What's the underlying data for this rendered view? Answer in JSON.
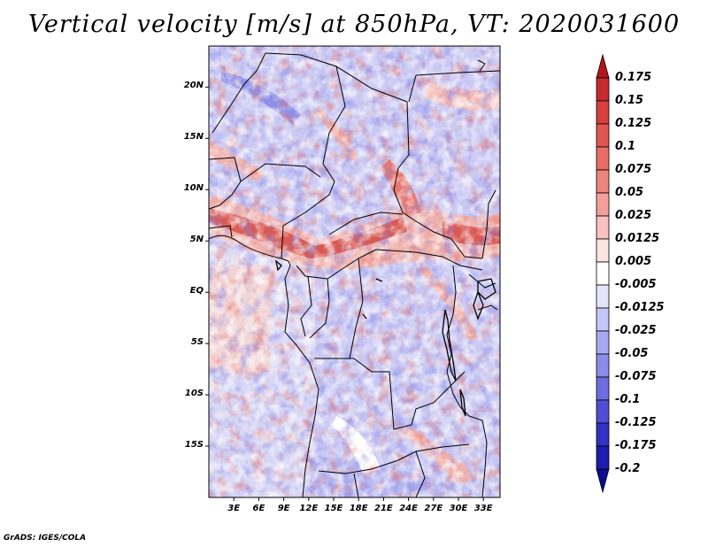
{
  "title": "Vertical velocity [m/s] at 850hPa, VT: 2020031600",
  "credit": "GrADS: IGES/COLA",
  "map": {
    "lon_range": [
      0,
      35
    ],
    "lat_range": [
      -20,
      24
    ],
    "lat_ticks": [
      {
        "value": 20,
        "label": "20N"
      },
      {
        "value": 15,
        "label": "15N"
      },
      {
        "value": 10,
        "label": "10N"
      },
      {
        "value": 5,
        "label": "5N"
      },
      {
        "value": 0,
        "label": "EQ"
      },
      {
        "value": -5,
        "label": "5S"
      },
      {
        "value": -10,
        "label": "10S"
      },
      {
        "value": -15,
        "label": "15S"
      }
    ],
    "lon_ticks": [
      {
        "value": 3,
        "label": "3E"
      },
      {
        "value": 6,
        "label": "6E"
      },
      {
        "value": 9,
        "label": "9E"
      },
      {
        "value": 12,
        "label": "12E"
      },
      {
        "value": 15,
        "label": "15E"
      },
      {
        "value": 18,
        "label": "18E"
      },
      {
        "value": 21,
        "label": "21E"
      },
      {
        "value": 24,
        "label": "24E"
      },
      {
        "value": 27,
        "label": "27E"
      },
      {
        "value": 30,
        "label": "30E"
      },
      {
        "value": 33,
        "label": "33E"
      }
    ]
  },
  "colorbar": {
    "labels": [
      "0.175",
      "0.15",
      "0.125",
      "0.1",
      "0.075",
      "0.05",
      "0.025",
      "0.0125",
      "0.005",
      "-0.005",
      "-0.0125",
      "-0.025",
      "-0.05",
      "-0.075",
      "-0.1",
      "-0.125",
      "-0.175",
      "-0.2"
    ],
    "colors": [
      "#b3171d",
      "#c72a2c",
      "#d63f3c",
      "#e05651",
      "#e86d66",
      "#ee857c",
      "#f4a09a",
      "#f8c2bf",
      "#fce4e2",
      "#ffffff",
      "#e4e4fc",
      "#c6c6f8",
      "#a9a9f2",
      "#8b8be9",
      "#6d6ddf",
      "#4f4fd3",
      "#3131c4",
      "#1c1cae",
      "#0c0c8f"
    ]
  }
}
